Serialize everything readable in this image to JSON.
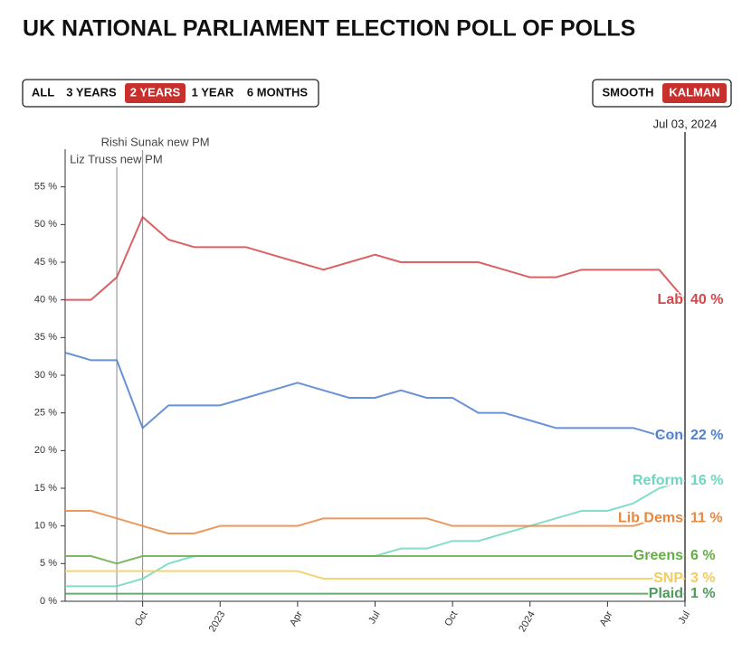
{
  "chart_data": {
    "type": "line",
    "title": "UK NATIONAL PARLIAMENT ELECTION POLL OF POLLS",
    "controls": {
      "ranges": [
        "ALL",
        "3 YEARS",
        "2 YEARS",
        "1 YEAR",
        "6 MONTHS"
      ],
      "selected_range": 2,
      "methods": [
        "SMOOTH",
        "KALMAN"
      ],
      "selected_method": 1
    },
    "end_date_label": "Jul 03, 2024",
    "annotations": [
      {
        "text": "Liz Truss new PM",
        "x": "2022-09"
      },
      {
        "text": "Rishi Sunak new PM",
        "x": "2022-10"
      }
    ],
    "x": [
      "2022-07",
      "2022-08",
      "2022-09",
      "2022-10",
      "2022-11",
      "2022-12",
      "2023-01",
      "2023-02",
      "2023-03",
      "2023-04",
      "2023-05",
      "2023-06",
      "2023-07",
      "2023-08",
      "2023-09",
      "2023-10",
      "2023-11",
      "2023-12",
      "2024-01",
      "2024-02",
      "2024-03",
      "2024-04",
      "2024-05",
      "2024-06",
      "2024-07"
    ],
    "xlim": [
      "2022-07",
      "2024-07"
    ],
    "xticks": [
      {
        "value": "2022-10",
        "label": "Oct"
      },
      {
        "value": "2023-01",
        "label": "2023"
      },
      {
        "value": "2023-04",
        "label": "Apr"
      },
      {
        "value": "2023-07",
        "label": "Jul"
      },
      {
        "value": "2023-10",
        "label": "Oct"
      },
      {
        "value": "2024-01",
        "label": "2024"
      },
      {
        "value": "2024-04",
        "label": "Apr"
      },
      {
        "value": "2024-07",
        "label": "Jul"
      }
    ],
    "ylim": [
      0,
      60
    ],
    "yticks": [
      {
        "value": 0,
        "label": "0 %"
      },
      {
        "value": 5,
        "label": "5 %"
      },
      {
        "value": 10,
        "label": "10 %"
      },
      {
        "value": 15,
        "label": "15 %"
      },
      {
        "value": 20,
        "label": "20 %"
      },
      {
        "value": 25,
        "label": "25 %"
      },
      {
        "value": 30,
        "label": "30 %"
      },
      {
        "value": 35,
        "label": "35 %"
      },
      {
        "value": 40,
        "label": "40 %"
      },
      {
        "value": 45,
        "label": "45 %"
      },
      {
        "value": 50,
        "label": "50 %"
      },
      {
        "value": 55,
        "label": "55 %"
      }
    ],
    "series": [
      {
        "name": "Lab",
        "color": "#d4474a",
        "values": [
          40,
          40,
          43,
          51,
          48,
          47,
          47,
          47,
          46,
          45,
          44,
          45,
          46,
          45,
          45,
          45,
          45,
          44,
          43,
          43,
          44,
          44,
          44,
          44,
          40
        ],
        "value_labels": [
          null,
          null,
          null,
          null,
          null,
          null,
          null,
          null,
          null,
          null,
          null,
          null,
          null,
          null,
          null,
          null,
          null,
          null,
          null,
          null,
          null,
          null,
          null,
          null,
          "40 %"
        ]
      },
      {
        "name": "Con",
        "color": "#4f7fcf",
        "values": [
          33,
          32,
          32,
          23,
          26,
          26,
          26,
          27,
          28,
          29,
          28,
          27,
          27,
          28,
          27,
          27,
          25,
          25,
          24,
          23,
          23,
          23,
          23,
          22,
          22
        ],
        "value_labels": [
          null,
          null,
          null,
          null,
          null,
          null,
          null,
          null,
          null,
          null,
          null,
          null,
          null,
          null,
          null,
          null,
          null,
          null,
          null,
          null,
          null,
          null,
          null,
          null,
          "22 %"
        ]
      },
      {
        "name": "Reform",
        "color": "#6fd6c2",
        "values": [
          2,
          2,
          2,
          3,
          5,
          6,
          6,
          6,
          6,
          6,
          6,
          6,
          6,
          7,
          7,
          8,
          8,
          9,
          10,
          11,
          12,
          12,
          13,
          15,
          16
        ],
        "value_labels": [
          null,
          null,
          null,
          null,
          null,
          null,
          null,
          null,
          null,
          null,
          null,
          null,
          null,
          null,
          null,
          null,
          null,
          null,
          null,
          null,
          null,
          null,
          null,
          null,
          "16 %"
        ]
      },
      {
        "name": "Lib Dems",
        "color": "#e8873f",
        "values": [
          12,
          12,
          11,
          10,
          9,
          9,
          10,
          10,
          10,
          10,
          11,
          11,
          11,
          11,
          11,
          10,
          10,
          10,
          10,
          10,
          10,
          10,
          10,
          11,
          11
        ],
        "value_labels": [
          null,
          null,
          null,
          null,
          null,
          null,
          null,
          null,
          null,
          null,
          null,
          null,
          null,
          null,
          null,
          null,
          null,
          null,
          null,
          null,
          null,
          null,
          null,
          null,
          "11 %"
        ]
      },
      {
        "name": "Greens",
        "color": "#66ad46",
        "values": [
          6,
          6,
          5,
          6,
          6,
          6,
          6,
          6,
          6,
          6,
          6,
          6,
          6,
          6,
          6,
          6,
          6,
          6,
          6,
          6,
          6,
          6,
          6,
          6,
          6
        ],
        "value_labels": [
          null,
          null,
          null,
          null,
          null,
          null,
          null,
          null,
          null,
          null,
          null,
          null,
          null,
          null,
          null,
          null,
          null,
          null,
          null,
          null,
          null,
          null,
          null,
          null,
          "6 %"
        ]
      },
      {
        "name": "SNP",
        "color": "#f2cc5c",
        "values": [
          4,
          4,
          4,
          4,
          4,
          4,
          4,
          4,
          4,
          4,
          3,
          3,
          3,
          3,
          3,
          3,
          3,
          3,
          3,
          3,
          3,
          3,
          3,
          3,
          3
        ],
        "value_labels": [
          null,
          null,
          null,
          null,
          null,
          null,
          null,
          null,
          null,
          null,
          null,
          null,
          null,
          null,
          null,
          null,
          null,
          null,
          null,
          null,
          null,
          null,
          null,
          null,
          "3 %"
        ]
      },
      {
        "name": "Plaid",
        "color": "#4f9a5c",
        "values": [
          1,
          1,
          1,
          1,
          1,
          1,
          1,
          1,
          1,
          1,
          1,
          1,
          1,
          1,
          1,
          1,
          1,
          1,
          1,
          1,
          1,
          1,
          1,
          1,
          1
        ],
        "value_labels": [
          null,
          null,
          null,
          null,
          null,
          null,
          null,
          null,
          null,
          null,
          null,
          null,
          null,
          null,
          null,
          null,
          null,
          null,
          null,
          null,
          null,
          null,
          null,
          null,
          "1 %"
        ]
      }
    ]
  }
}
